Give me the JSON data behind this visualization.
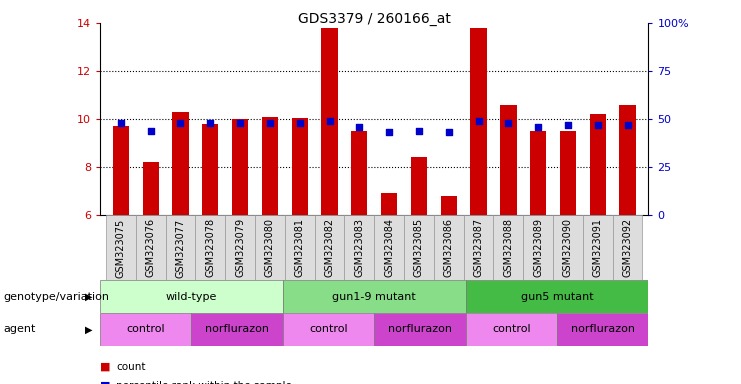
{
  "title": "GDS3379 / 260166_at",
  "samples": [
    "GSM323075",
    "GSM323076",
    "GSM323077",
    "GSM323078",
    "GSM323079",
    "GSM323080",
    "GSM323081",
    "GSM323082",
    "GSM323083",
    "GSM323084",
    "GSM323085",
    "GSM323086",
    "GSM323087",
    "GSM323088",
    "GSM323089",
    "GSM323090",
    "GSM323091",
    "GSM323092"
  ],
  "counts": [
    9.7,
    8.2,
    10.3,
    9.8,
    10.0,
    10.1,
    10.05,
    13.8,
    9.5,
    6.9,
    8.4,
    6.8,
    13.8,
    10.6,
    9.5,
    9.5,
    10.2,
    10.6
  ],
  "percentile_ranks": [
    48,
    44,
    48,
    48,
    48,
    48,
    48,
    49,
    46,
    43,
    44,
    43,
    49,
    48,
    46,
    47,
    47,
    47
  ],
  "ymin": 6,
  "ymax": 14,
  "yticks_left": [
    6,
    8,
    10,
    12,
    14
  ],
  "yticks_right": [
    0,
    25,
    50,
    75,
    100
  ],
  "bar_color": "#cc0000",
  "dot_color": "#0000cc",
  "genotype_groups": [
    {
      "label": "wild-type",
      "start": 0,
      "end": 6,
      "color": "#ccffcc"
    },
    {
      "label": "gun1-9 mutant",
      "start": 6,
      "end": 12,
      "color": "#88dd88"
    },
    {
      "label": "gun5 mutant",
      "start": 12,
      "end": 18,
      "color": "#44bb44"
    }
  ],
  "agent_groups": [
    {
      "label": "control",
      "start": 0,
      "end": 3,
      "color": "#ee88ee"
    },
    {
      "label": "norflurazon",
      "start": 3,
      "end": 6,
      "color": "#cc44cc"
    },
    {
      "label": "control",
      "start": 6,
      "end": 9,
      "color": "#ee88ee"
    },
    {
      "label": "norflurazon",
      "start": 9,
      "end": 12,
      "color": "#cc44cc"
    },
    {
      "label": "control",
      "start": 12,
      "end": 15,
      "color": "#ee88ee"
    },
    {
      "label": "norflurazon",
      "start": 15,
      "end": 18,
      "color": "#cc44cc"
    }
  ],
  "legend_count_color": "#cc0000",
  "legend_dot_color": "#0000cc",
  "tick_label_fontsize": 7,
  "title_fontsize": 10,
  "annotation_fontsize": 8,
  "label_fontsize": 8
}
